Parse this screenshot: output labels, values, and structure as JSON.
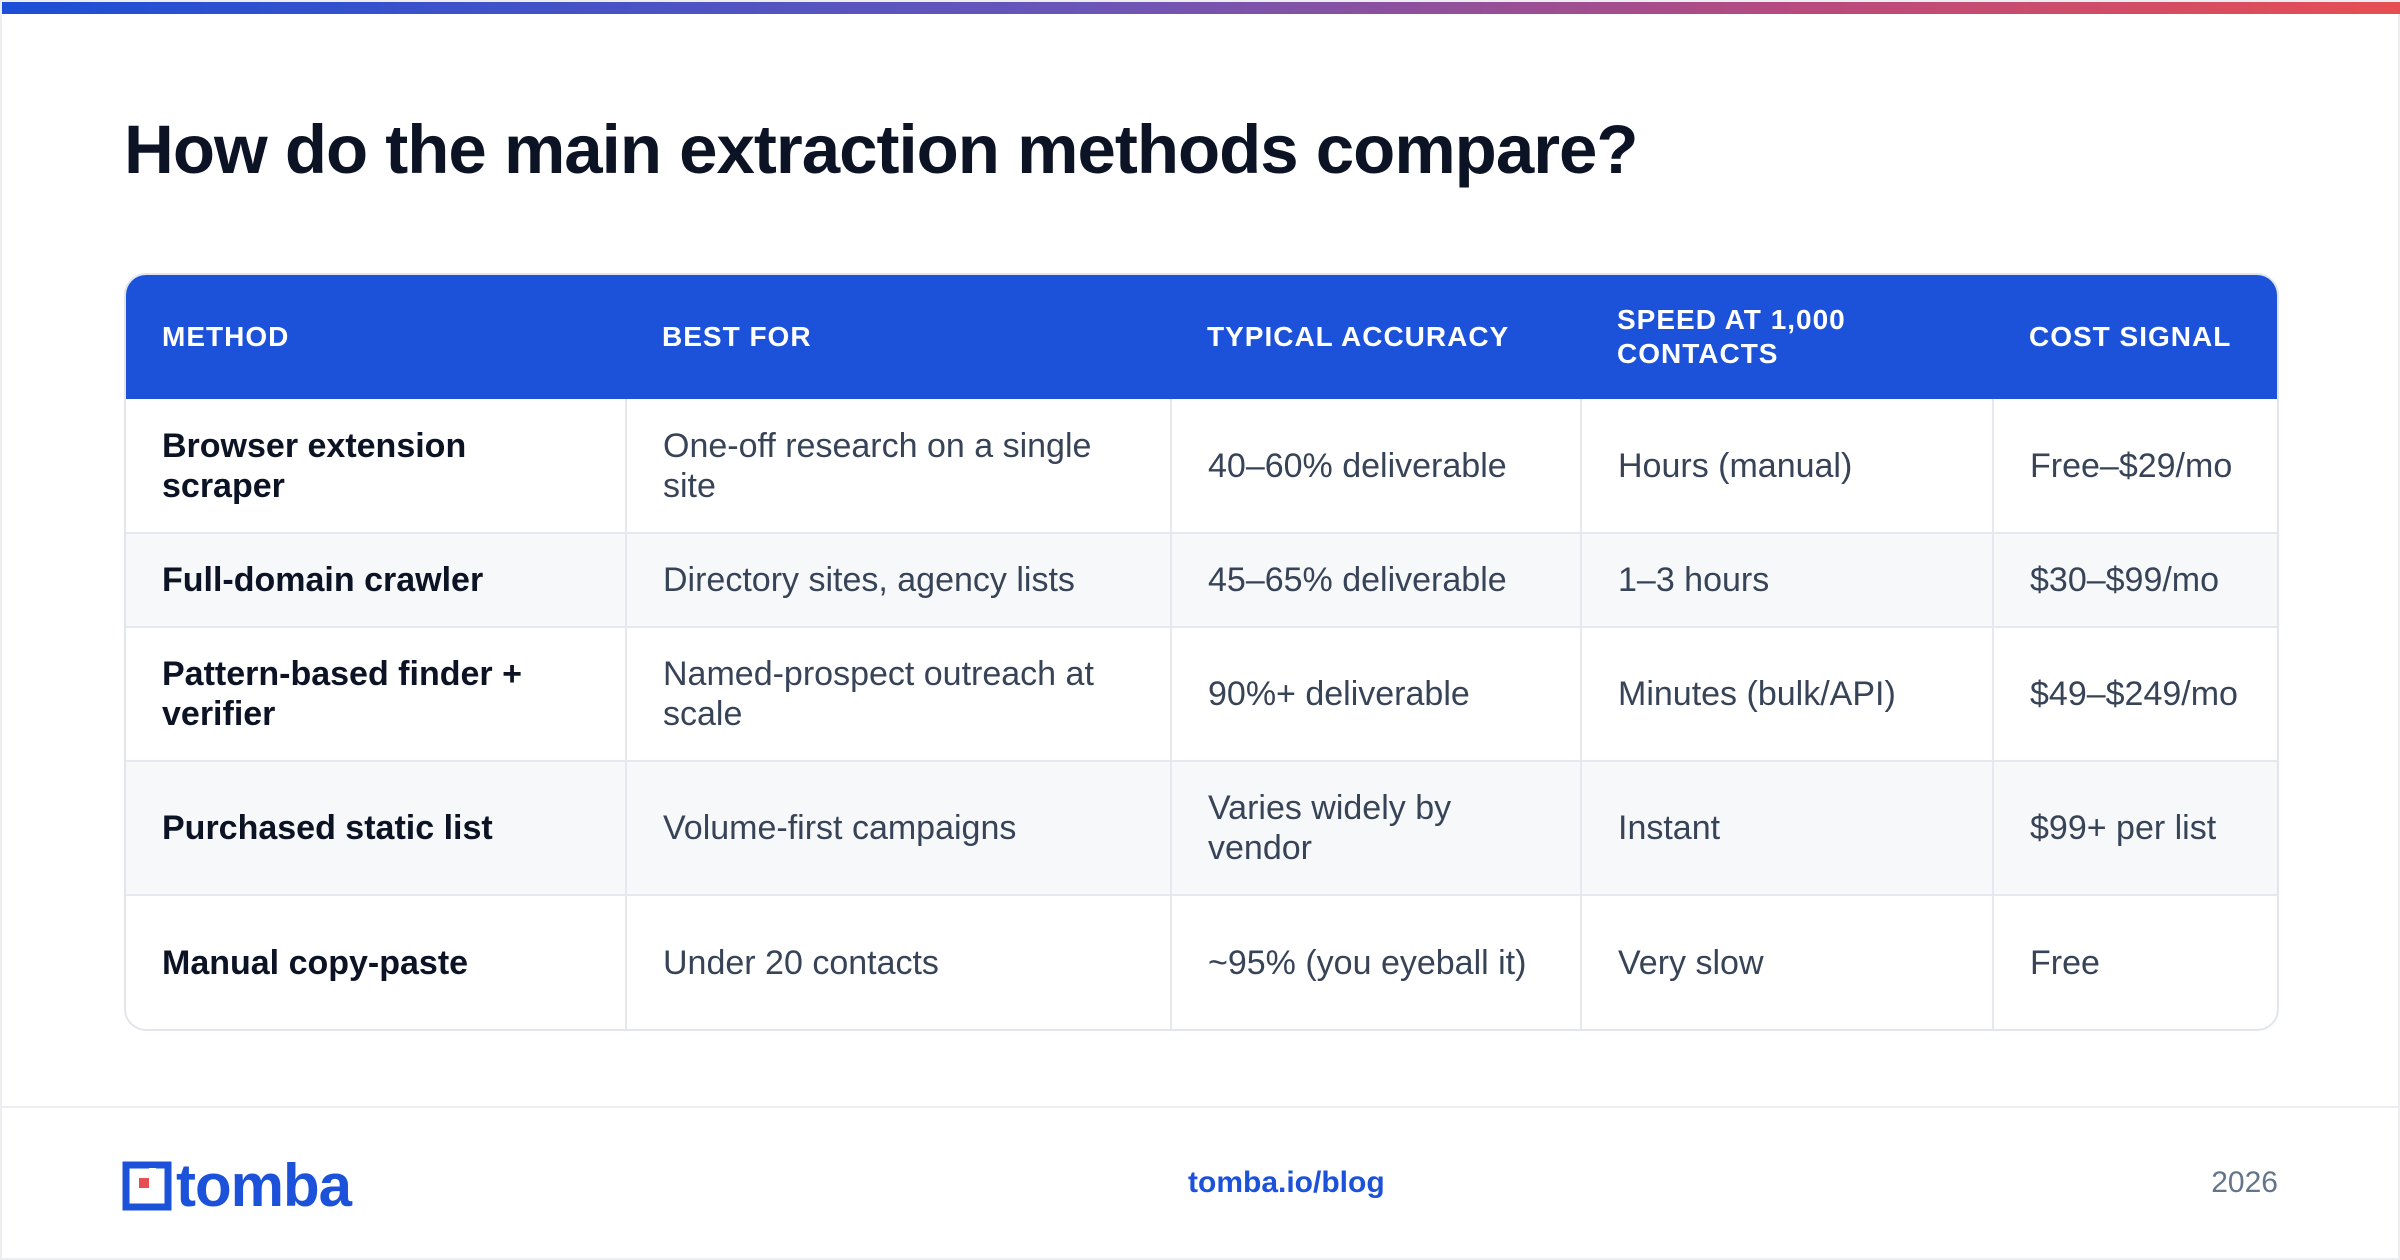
{
  "title": "How do the main extraction methods compare?",
  "colors": {
    "accent": "#1c52da",
    "gradient_end": "#e74e52"
  },
  "table": {
    "headers": [
      "METHOD",
      "BEST FOR",
      "TYPICAL ACCURACY",
      "SPEED AT 1,000 CONTACTS",
      "COST SIGNAL"
    ],
    "rows": [
      [
        "Browser extension scraper",
        "One-off research on a single site",
        "40–60% deliverable",
        "Hours (manual)",
        "Free–$29/mo"
      ],
      [
        "Full-domain crawler",
        "Directory sites, agency lists",
        "45–65% deliverable",
        "1–3 hours",
        "$30–$99/mo"
      ],
      [
        "Pattern-based finder + verifier",
        "Named-prospect outreach at scale",
        "90%+ deliverable",
        "Minutes (bulk/API)",
        "$49–$249/mo"
      ],
      [
        "Purchased static list",
        "Volume-first campaigns",
        "Varies widely by vendor",
        "Instant",
        "$99+ per list"
      ],
      [
        "Manual copy-paste",
        "Under 20 contacts",
        "~95% (you eyeball it)",
        "Very slow",
        "Free"
      ]
    ]
  },
  "footer": {
    "logo_text": "tomba",
    "logo_icon": "tomba-logo-mark",
    "url": "tomba.io/blog",
    "year": "2026"
  }
}
